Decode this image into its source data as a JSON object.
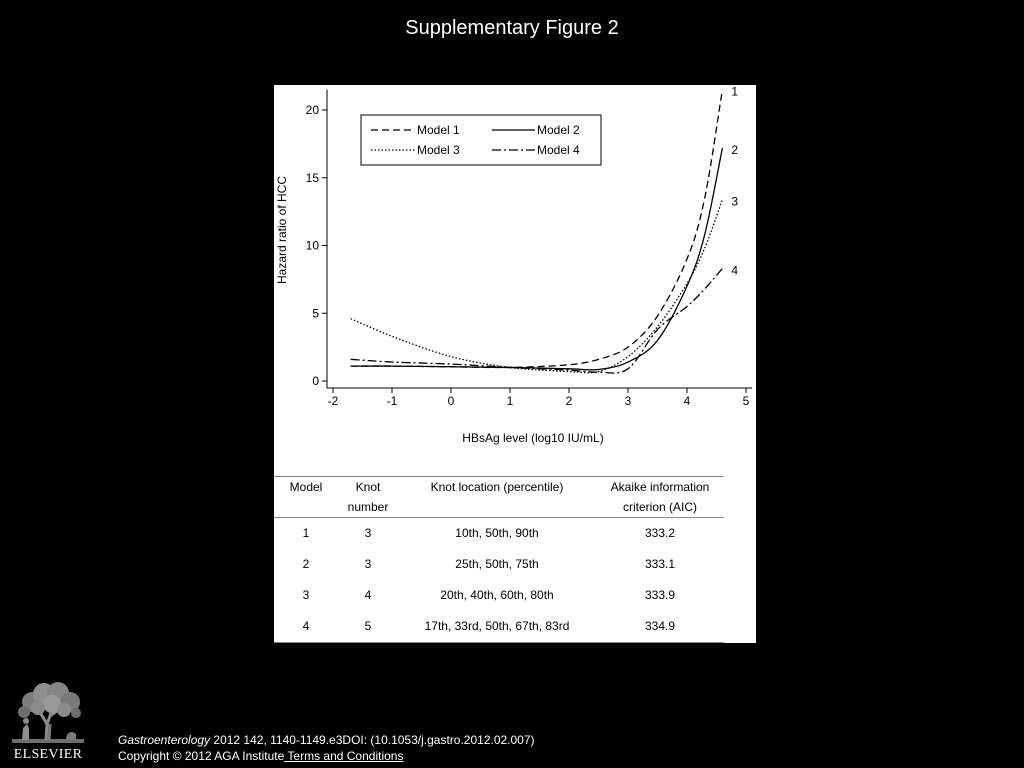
{
  "slide": {
    "title": "Supplementary Figure 2"
  },
  "colors": {
    "background": "#000000",
    "panel": "#ffffff",
    "curve": "#000000",
    "text": "#ffffff"
  },
  "chart_data": {
    "type": "line",
    "xlabel": "HBsAg level (log10 IU/mL)",
    "ylabel": "Hazard ratio of HCC",
    "xlim": [
      -2,
      5
    ],
    "ylim": [
      0,
      21.5
    ],
    "xticks": [
      -2,
      -1,
      0,
      1,
      2,
      3,
      4,
      5
    ],
    "yticks": [
      0,
      5,
      10,
      15,
      20
    ],
    "grid": false,
    "legend": {
      "placement": "top-left"
    },
    "x": [
      -1.7,
      -1,
      0,
      1,
      2,
      2.5,
      3,
      3.5,
      4,
      4.3,
      4.6
    ],
    "series": [
      {
        "name": "Model 1",
        "end_label": "1",
        "line_style": "dashed",
        "values": [
          1.1,
          1.1,
          1.05,
          1.0,
          1.2,
          1.6,
          2.5,
          4.8,
          9.0,
          13.5,
          21.5
        ]
      },
      {
        "name": "Model 2",
        "end_label": "2",
        "line_style": "solid",
        "values": [
          1.1,
          1.1,
          1.05,
          1.0,
          0.9,
          0.85,
          1.4,
          3.0,
          7.0,
          10.8,
          17.2
        ]
      },
      {
        "name": "Model 3",
        "end_label": "3",
        "line_style": "dotted",
        "values": [
          4.6,
          3.3,
          1.8,
          1.0,
          0.7,
          0.7,
          1.8,
          4.0,
          7.2,
          9.8,
          13.4
        ]
      },
      {
        "name": "Model 4",
        "end_label": "4",
        "line_style": "dash-dot",
        "values": [
          1.6,
          1.4,
          1.25,
          1.0,
          0.8,
          0.65,
          0.9,
          3.8,
          5.5,
          6.8,
          8.3
        ]
      }
    ]
  },
  "table": {
    "headers": [
      [
        "Model"
      ],
      [
        "Knot",
        "number"
      ],
      [
        "Knot location (percentile)"
      ],
      [
        "Akaike information",
        "criterion (AIC)"
      ]
    ],
    "rows": [
      [
        "1",
        "3",
        "10th, 50th, 90th",
        "333.2"
      ],
      [
        "2",
        "3",
        "25th, 50th, 75th",
        "333.1"
      ],
      [
        "3",
        "4",
        "20th, 40th, 60th, 80th",
        "333.9"
      ],
      [
        "4",
        "5",
        "17th, 33rd, 50th, 67th, 83rd",
        "334.9"
      ]
    ]
  },
  "footer": {
    "logo_text": "ELSEVIER",
    "journal": "Gastroenterology",
    "citation": " 2012 142, 1140-1149.e3DOI: (10.1053/j.gastro.2012.02.007)",
    "copyright": "Copyright © 2012 AGA Institute",
    "terms_link": " Terms and Conditions"
  }
}
